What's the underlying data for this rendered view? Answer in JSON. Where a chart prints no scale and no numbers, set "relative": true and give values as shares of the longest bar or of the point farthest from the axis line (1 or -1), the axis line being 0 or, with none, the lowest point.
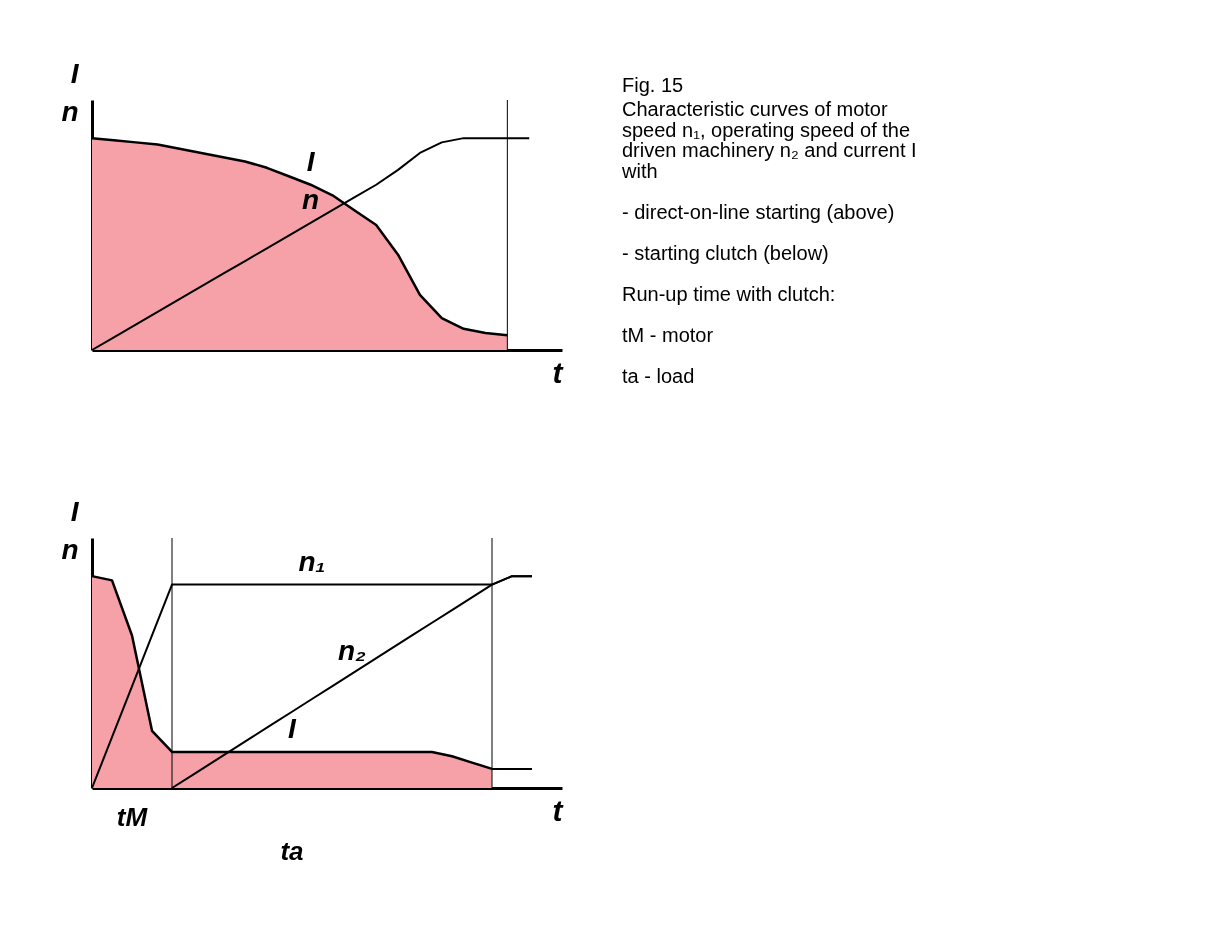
{
  "chart_data": [
    {
      "type": "line",
      "relative": true,
      "ylabel": "I\nn",
      "xlabel": "t",
      "tick_labels": false,
      "grid": false,
      "categories": [
        null,
        null,
        null,
        null,
        null,
        null,
        null,
        null,
        null,
        null,
        null,
        null,
        null,
        null,
        null,
        null,
        null,
        null,
        null,
        null,
        null
      ],
      "series": [
        {
          "name": "I",
          "type": "area",
          "color": "#f6a1a8",
          "values": [
            1.0,
            0.99,
            0.98,
            0.97,
            0.95,
            0.93,
            0.91,
            0.89,
            0.86,
            0.82,
            0.78,
            0.73,
            0.66,
            0.59,
            0.45,
            0.26,
            0.15,
            0.1,
            0.08,
            0.07,
            null
          ]
        },
        {
          "name": "n",
          "type": "line",
          "color": "#000000",
          "values": [
            0,
            0.06,
            0.12,
            0.18,
            0.24,
            0.3,
            0.36,
            0.42,
            0.48,
            0.54,
            0.6,
            0.66,
            0.72,
            0.78,
            0.85,
            0.93,
            0.98,
            1.0,
            1.0,
            1.0,
            1.0
          ]
        }
      ]
    },
    {
      "type": "line",
      "relative": true,
      "ylabel": "I\nn",
      "xlabel": "t",
      "tick_labels": false,
      "grid": false,
      "categories": [
        null,
        null,
        null,
        null,
        null,
        null,
        null,
        null,
        null,
        null,
        null,
        null,
        null,
        null,
        null,
        null,
        null,
        null,
        null,
        null,
        null,
        null,
        null
      ],
      "series": [
        {
          "name": "I",
          "type": "area",
          "color": "#f6a1a8",
          "values": [
            1.0,
            0.98,
            0.72,
            0.27,
            0.17,
            0.17,
            0.17,
            0.17,
            0.17,
            0.17,
            0.17,
            0.17,
            0.17,
            0.17,
            0.17,
            0.17,
            0.17,
            0.17,
            0.15,
            0.12,
            0.09,
            null,
            null
          ]
        },
        {
          "type": "line",
          "color": "#000000",
          "values": [
            null,
            null,
            null,
            null,
            null,
            null,
            null,
            null,
            null,
            null,
            null,
            null,
            null,
            null,
            null,
            null,
            null,
            null,
            null,
            null,
            0.09,
            0.09,
            0.09
          ]
        },
        {
          "name": "n₁",
          "type": "line",
          "color": "#000000",
          "values": [
            0,
            0.24,
            0.48,
            0.72,
            0.96,
            0.96,
            0.96,
            0.96,
            0.96,
            0.96,
            0.96,
            0.96,
            0.96,
            0.96,
            0.96,
            0.96,
            0.96,
            0.96,
            0.96,
            0.96,
            0.96,
            1.0,
            1.0
          ]
        },
        {
          "name": "n₂",
          "type": "line",
          "color": "#000000",
          "values": [
            null,
            null,
            null,
            null,
            0,
            0.06,
            0.12,
            0.18,
            0.24,
            0.3,
            0.36,
            0.42,
            0.48,
            0.54,
            0.6,
            0.66,
            0.72,
            0.78,
            0.84,
            0.9,
            0.96,
            1.0,
            1.0
          ]
        }
      ],
      "annotations": [
        "tM",
        "ta"
      ]
    },
    {
      "type": "other",
      "title": "Fig. 15",
      "annotations": [
        "Characteristic curves of motor speed n₁, operating speed of the driven machinery n₂ and current I with",
        "- direct-on-line starting (above)",
        "- starting clutch (below)",
        "Run-up time with clutch:",
        "tM  -  motor",
        "ta  -  load"
      ]
    }
  ]
}
